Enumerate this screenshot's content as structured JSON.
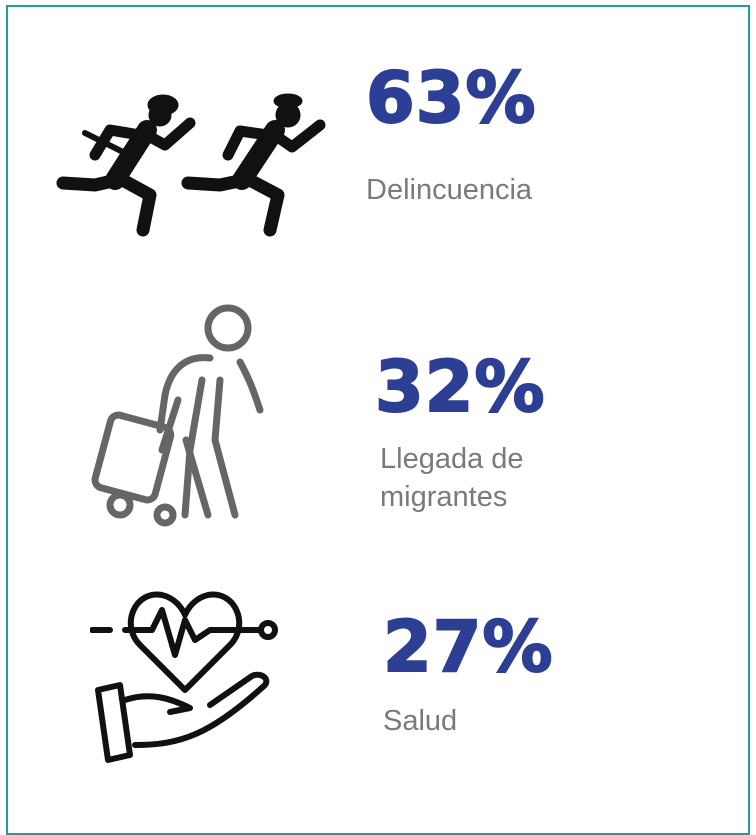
{
  "items": [
    {
      "percent": "63%",
      "label": "Delincuencia"
    },
    {
      "percent": "32%",
      "label": "Llegada de migrantes"
    },
    {
      "percent": "27%",
      "label": "Salud"
    }
  ]
}
